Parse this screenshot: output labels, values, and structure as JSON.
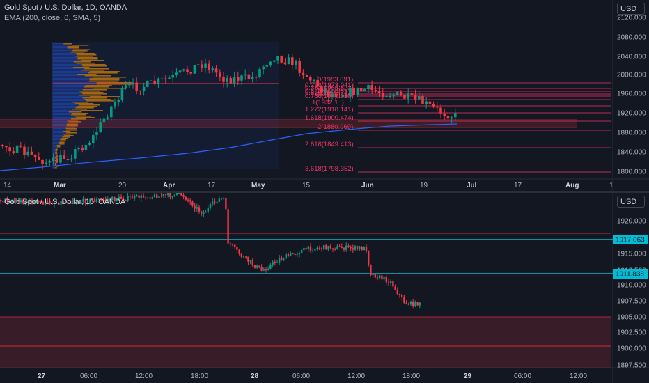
{
  "daily_chart": {
    "symbol_line": "Gold Spot / U.S. Dollar, 1D, OANDA",
    "indicator_line": "EMA (200, close, 0, SMA, 5)",
    "currency": "USD",
    "price_ticks": [
      "2120.000",
      "2080.000",
      "2040.000",
      "2000.000",
      "1960.000",
      "1920.000",
      "1880.000",
      "1840.000",
      "1800.000"
    ],
    "time_ticks": [
      "14",
      "Mar",
      "20",
      "Apr",
      "17",
      "May",
      "15",
      "Jun",
      "19",
      "Jul",
      "17",
      "Aug",
      "1"
    ],
    "fib_levels": [
      {
        "label": "0(1983.091)"
      },
      {
        "label": "0.236(1973.041)"
      },
      {
        "label": "0.382(1966.823)"
      },
      {
        "label": "0.5(1961.798)"
      },
      {
        "label": "0.618(1956.772)"
      },
      {
        "label": "0.786(1949.618)"
      },
      {
        "label": "1(1932.1..)"
      },
      {
        "label": "1.272(1918.141)"
      },
      {
        "label": "1.618(1900.474)"
      },
      {
        "label": "2(1880.969)"
      },
      {
        "label": "2.618(1849.413)"
      },
      {
        "label": "3.618(1798.352)"
      }
    ]
  },
  "intraday_chart": {
    "symbol_line": "Gold Spot / U.S. Dollar, 15, OANDA",
    "currency": "USD",
    "price_ticks": [
      "1920.000",
      "1915.000",
      "1912.500",
      "1910.000",
      "1907.500",
      "1905.000",
      "1902.500",
      "1900.000",
      "1897.500"
    ],
    "badges": [
      {
        "label": "1917.063",
        "color": "#00bcd4"
      },
      {
        "label": "1911.838",
        "color": "#00bcd4"
      }
    ],
    "time_ticks": [
      "27",
      "06:00",
      "12:00",
      "18:00",
      "28",
      "06:00",
      "12:00",
      "18:00",
      "29",
      "06:00",
      "12:00"
    ]
  },
  "colors": {
    "up": "#089981",
    "down": "#f23645",
    "ema": "#2962ff",
    "fib": "#f23667",
    "level": "#00bcd4",
    "volume_profile_up": "#2962ff",
    "volume_profile_down": "#ff9800"
  }
}
